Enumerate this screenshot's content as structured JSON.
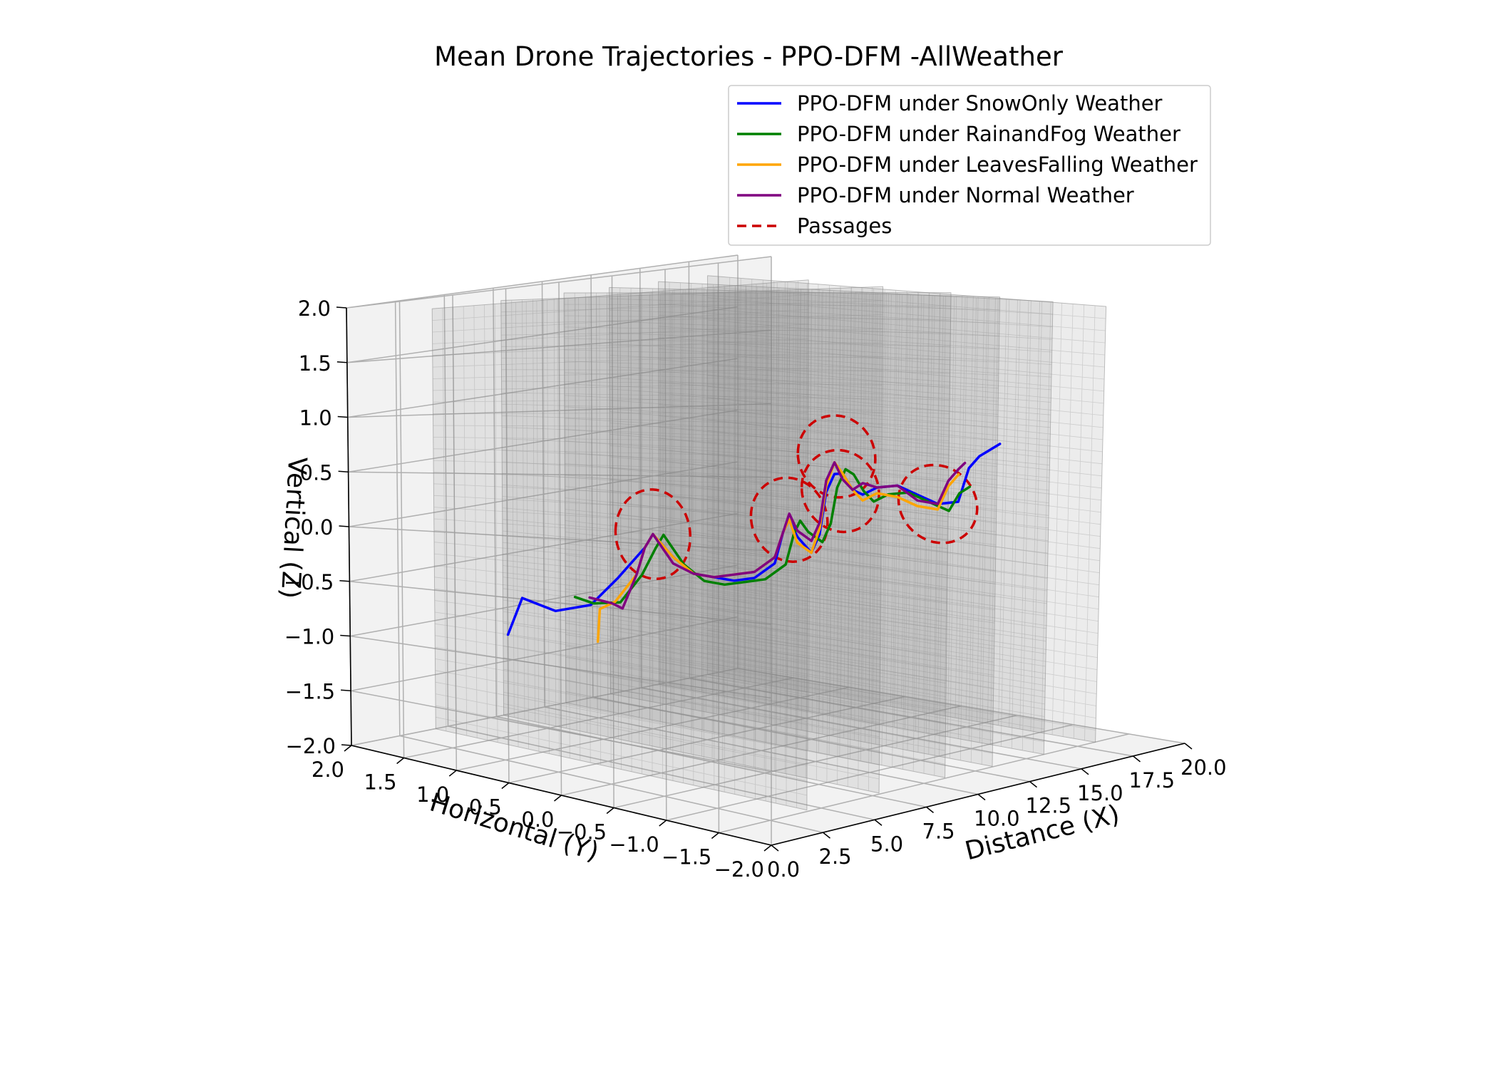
{
  "chart_data": {
    "type": "line",
    "projection": "3d",
    "title": "Mean Drone Trajectories - PPO-DFM -AllWeather",
    "xlabel": "Distance (X)",
    "ylabel": "Horizontal (Y)",
    "zlabel": "Vertical (Z)",
    "xlim": [
      0,
      20
    ],
    "ylim": [
      -2,
      2
    ],
    "zlim": [
      -2,
      2
    ],
    "x_ticks": [
      "0.0",
      "2.5",
      "5.0",
      "7.5",
      "10.0",
      "12.5",
      "15.0",
      "17.5",
      "20.0"
    ],
    "y_ticks": [
      "2.0",
      "1.5",
      "1.0",
      "0.5",
      "0.0",
      "−0.5",
      "−1.0",
      "−1.5",
      "−2.0"
    ],
    "z_ticks": [
      "2.0",
      "1.5",
      "1.0",
      "0.5",
      "0.0",
      "−0.5",
      "−1.0",
      "−1.5",
      "−2.0"
    ],
    "grid": true,
    "legend_position": "top-right",
    "series": [
      {
        "name": "PPO-DFM under SnowOnly Weather",
        "color": "#0000ff",
        "x": [
          0.0,
          0.2,
          0.8,
          1.5,
          2.3,
          2.6,
          3.0,
          4.0,
          5.0,
          6.0,
          7.0,
          8.0,
          9.0,
          9.4,
          9.7,
          10.1,
          10.8,
          11.2,
          11.5,
          11.9,
          12.3,
          12.8,
          13.3,
          14.0,
          15.0,
          16.0,
          17.0,
          18.0,
          18.5,
          19.0,
          20.0
        ],
        "y": [
          0.5,
          0.4,
          0.2,
          0.0,
          -0.1,
          -0.3,
          -0.3,
          -0.3,
          -0.3,
          -0.3,
          -0.3,
          -0.3,
          -0.3,
          -0.3,
          -0.3,
          -0.3,
          -0.3,
          -0.3,
          -0.3,
          -0.3,
          -0.3,
          -0.3,
          -0.3,
          -0.3,
          -0.3,
          -0.3,
          -0.3,
          -0.3,
          -0.3,
          -0.3,
          -0.3
        ],
        "z": [
          -0.8,
          -0.5,
          -0.6,
          -0.55,
          -0.35,
          -0.1,
          0.0,
          -0.2,
          -0.35,
          -0.4,
          -0.45,
          -0.45,
          -0.35,
          -0.1,
          0.0,
          -0.15,
          -0.3,
          -0.15,
          0.2,
          0.35,
          0.35,
          0.2,
          0.15,
          0.2,
          0.2,
          0.1,
          0.0,
          0.0,
          0.3,
          0.4,
          0.5
        ]
      },
      {
        "name": "PPO-DFM under RainandFog Weather",
        "color": "#008000",
        "x": [
          0.2,
          0.6,
          1.4,
          2.2,
          2.6,
          3.0,
          4.0,
          5.0,
          6.0,
          7.0,
          8.0,
          9.0,
          9.4,
          9.7,
          10.1,
          10.8,
          11.2,
          11.5,
          11.9,
          12.3,
          12.8,
          13.3,
          14.0,
          15.0,
          16.0,
          17.0,
          17.5,
          18.0
        ],
        "y": [
          -0.1,
          -0.2,
          -0.3,
          -0.35,
          -0.4,
          -0.4,
          -0.4,
          -0.4,
          -0.4,
          -0.4,
          -0.4,
          -0.4,
          -0.4,
          -0.4,
          -0.4,
          -0.4,
          -0.4,
          -0.4,
          -0.4,
          -0.4,
          -0.4,
          -0.4,
          -0.4,
          -0.4,
          -0.4,
          -0.4,
          -0.4,
          -0.4
        ],
        "z": [
          -0.45,
          -0.5,
          -0.5,
          -0.3,
          -0.1,
          0.0,
          -0.25,
          -0.4,
          -0.45,
          -0.45,
          -0.45,
          -0.35,
          -0.1,
          0.0,
          -0.1,
          -0.2,
          -0.05,
          0.25,
          0.4,
          0.35,
          0.2,
          0.1,
          0.15,
          0.15,
          0.05,
          -0.05,
          0.1,
          0.15
        ]
      },
      {
        "name": "PPO-DFM under LeavesFalling Weather",
        "color": "#ffa500",
        "x": [
          0.8,
          0.9,
          1.4,
          2.2,
          2.6,
          3.0,
          4.0,
          5.0,
          6.0,
          7.0,
          8.0,
          9.0,
          9.4,
          9.7,
          10.1,
          10.8,
          11.2,
          11.5,
          11.9,
          12.3,
          12.8,
          13.3,
          14.0,
          15.0,
          16.0,
          17.0,
          17.5,
          18.0
        ],
        "y": [
          -0.2,
          -0.2,
          -0.25,
          -0.3,
          -0.3,
          -0.3,
          -0.3,
          -0.3,
          -0.3,
          -0.3,
          -0.3,
          -0.3,
          -0.3,
          -0.3,
          -0.3,
          -0.3,
          -0.3,
          -0.3,
          -0.3,
          -0.3,
          -0.3,
          -0.3,
          -0.3,
          -0.3,
          -0.3,
          -0.3,
          -0.3,
          -0.3
        ],
        "z": [
          -0.8,
          -0.55,
          -0.5,
          -0.3,
          -0.1,
          0.0,
          -0.2,
          -0.35,
          -0.4,
          -0.4,
          -0.4,
          -0.3,
          -0.1,
          0.0,
          -0.2,
          -0.3,
          -0.1,
          0.25,
          0.45,
          0.35,
          0.2,
          0.1,
          0.15,
          0.1,
          0.0,
          -0.05,
          0.15,
          0.25
        ]
      },
      {
        "name": "PPO-DFM under Normal Weather",
        "color": "#800080",
        "x": [
          0.4,
          1.0,
          1.5,
          2.2,
          2.6,
          3.0,
          4.0,
          5.0,
          6.0,
          7.0,
          8.0,
          9.0,
          9.4,
          9.7,
          10.1,
          10.8,
          11.2,
          11.5,
          11.9,
          12.3,
          12.8,
          13.3,
          14.0,
          15.0,
          16.0,
          17.0,
          17.5,
          18.0,
          18.3
        ],
        "y": [
          -0.2,
          -0.3,
          -0.3,
          -0.3,
          -0.3,
          -0.3,
          -0.3,
          -0.3,
          -0.3,
          -0.3,
          -0.3,
          -0.3,
          -0.3,
          -0.3,
          -0.3,
          -0.3,
          -0.3,
          -0.3,
          -0.3,
          -0.3,
          -0.3,
          -0.3,
          -0.3,
          -0.3,
          -0.3,
          -0.3,
          -0.3,
          -0.3,
          -0.3
        ],
        "z": [
          -0.45,
          -0.5,
          -0.55,
          -0.3,
          -0.1,
          0.0,
          -0.25,
          -0.35,
          -0.4,
          -0.4,
          -0.4,
          -0.3,
          -0.1,
          0.05,
          -0.1,
          -0.2,
          -0.05,
          0.3,
          0.45,
          0.3,
          0.2,
          0.25,
          0.2,
          0.2,
          0.05,
          0.0,
          0.2,
          0.3,
          0.35
        ]
      }
    ],
    "passages": {
      "name": "Passages",
      "color": "#cc0000",
      "radius": 0.35,
      "centers": [
        {
          "x": 3.0,
          "y": -0.3,
          "z": 0.0
        },
        {
          "x": 9.7,
          "y": -0.3,
          "z": 0.0
        },
        {
          "x": 12.0,
          "y": -0.3,
          "z": 0.5
        },
        {
          "x": 12.2,
          "y": -0.3,
          "z": 0.2
        },
        {
          "x": 17.0,
          "y": -0.3,
          "z": 0.0
        }
      ]
    },
    "walls_x": [
      3.0,
      6.5,
      9.7,
      12.0,
      14.5,
      17.0
    ]
  }
}
